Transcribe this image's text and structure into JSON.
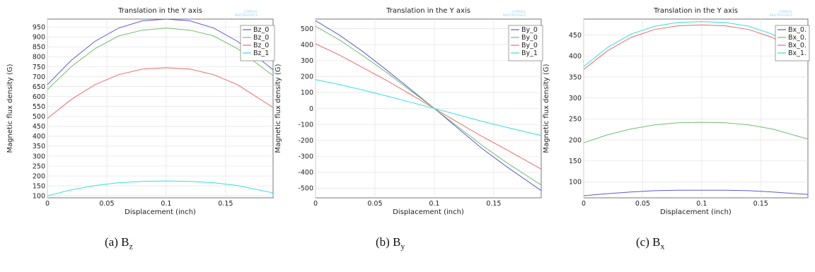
{
  "chart_data": [
    {
      "type": "line",
      "title": "Translation in the Y axis",
      "xlabel": "Displacement (inch)",
      "ylabel": "Magnetic flux density (G)",
      "xlim": [
        0,
        0.19
      ],
      "ylim": [
        90,
        990
      ],
      "xticks": [
        0,
        0.05,
        0.1,
        0.15
      ],
      "xtick_labels": [
        "0",
        "0.05",
        "0.1",
        "0.15"
      ],
      "yticks": [
        100,
        150,
        200,
        250,
        300,
        350,
        400,
        450,
        500,
        550,
        600,
        650,
        700,
        750,
        800,
        850,
        900,
        950
      ],
      "ytick_labels": [
        "100",
        "150",
        "200",
        "250",
        "300",
        "350",
        "400",
        "450",
        "500",
        "550",
        "600",
        "650",
        "700",
        "750",
        "800",
        "850",
        "900",
        "950"
      ],
      "grid": true,
      "legend_placement": "top-right",
      "caption": {
        "label": "(a) B",
        "sub": "z"
      },
      "series": [
        {
          "name": "Bz_0",
          "color": "#5b5bd6",
          "x": [
            0,
            0.02,
            0.04,
            0.06,
            0.08,
            0.1,
            0.12,
            0.14,
            0.16,
            0.19
          ],
          "y": [
            660,
            782,
            878,
            945,
            981,
            990,
            981,
            945,
            878,
            735
          ]
        },
        {
          "name": "Bz_0",
          "color": "#6fbf6f",
          "x": [
            0,
            0.02,
            0.04,
            0.06,
            0.08,
            0.1,
            0.12,
            0.14,
            0.16,
            0.19
          ],
          "y": [
            635,
            750,
            841,
            905,
            934,
            945,
            934,
            905,
            841,
            705
          ]
        },
        {
          "name": "Bz_0",
          "color": "#ee6a6a",
          "x": [
            0,
            0.02,
            0.04,
            0.06,
            0.08,
            0.1,
            0.12,
            0.14,
            0.16,
            0.19
          ],
          "y": [
            490,
            585,
            660,
            710,
            738,
            745,
            738,
            710,
            660,
            545
          ]
        },
        {
          "name": "Bz_1",
          "color": "#33e0e0",
          "x": [
            0,
            0.02,
            0.04,
            0.06,
            0.08,
            0.1,
            0.12,
            0.14,
            0.16,
            0.19
          ],
          "y": [
            100,
            130,
            152,
            166,
            173,
            175,
            173,
            166,
            152,
            115
          ]
        }
      ]
    },
    {
      "type": "line",
      "title": "Translation in the Y axis",
      "xlabel": "Displacement (inch)",
      "ylabel": "Magnetic flux density (G)",
      "xlim": [
        0,
        0.19
      ],
      "ylim": [
        -560,
        560
      ],
      "xticks": [
        0,
        0.05,
        0.1,
        0.15
      ],
      "xtick_labels": [
        "0",
        "0.05",
        "0.1",
        "0.15"
      ],
      "yticks": [
        -500,
        -400,
        -300,
        -200,
        -100,
        0,
        100,
        200,
        300,
        400,
        500
      ],
      "ytick_labels": [
        "-500",
        "-400",
        "-300",
        "-200",
        "-100",
        "0",
        "100",
        "200",
        "300",
        "400",
        "500"
      ],
      "grid": true,
      "legend_placement": "top-right",
      "caption": {
        "label": "(b) B",
        "sub": "y"
      },
      "series": [
        {
          "name": "By_0",
          "color": "#5b5bd6",
          "x": [
            0,
            0.02,
            0.04,
            0.06,
            0.08,
            0.1,
            0.12,
            0.14,
            0.16,
            0.19
          ],
          "y": [
            550,
            460,
            355,
            240,
            120,
            0,
            -125,
            -250,
            -360,
            -515
          ]
        },
        {
          "name": "By_0",
          "color": "#6fbf6f",
          "x": [
            0,
            0.02,
            0.04,
            0.06,
            0.08,
            0.1,
            0.12,
            0.14,
            0.16,
            0.19
          ],
          "y": [
            515,
            430,
            330,
            225,
            112,
            0,
            -115,
            -230,
            -335,
            -480
          ]
        },
        {
          "name": "By_0",
          "color": "#ee6a6a",
          "x": [
            0,
            0.02,
            0.04,
            0.06,
            0.08,
            0.1,
            0.12,
            0.14,
            0.16,
            0.19
          ],
          "y": [
            405,
            335,
            255,
            175,
            88,
            0,
            -88,
            -175,
            -255,
            -380
          ]
        },
        {
          "name": "By_1",
          "color": "#33e0e0",
          "x": [
            0,
            0.02,
            0.04,
            0.06,
            0.08,
            0.1,
            0.12,
            0.14,
            0.16,
            0.19
          ],
          "y": [
            180,
            150,
            115,
            78,
            39,
            0,
            -40,
            -80,
            -117,
            -170
          ]
        }
      ]
    },
    {
      "type": "line",
      "title": "Translation in the Y axis",
      "xlabel": "Displacement (inch)",
      "ylabel": "Magnetic flux density (G)",
      "xlim": [
        0,
        0.19
      ],
      "ylim": [
        62,
        488
      ],
      "xticks": [
        0,
        0.05,
        0.1,
        0.15
      ],
      "xtick_labels": [
        "0",
        "0.05",
        "0.1",
        "0.15"
      ],
      "yticks": [
        100,
        150,
        200,
        250,
        300,
        350,
        400,
        450
      ],
      "ytick_labels": [
        "100",
        "150",
        "200",
        "250",
        "300",
        "350",
        "400",
        "450"
      ],
      "grid": true,
      "legend_placement": "top-right",
      "caption": {
        "label": "(c) B",
        "sub": "x"
      },
      "series": [
        {
          "name": "Bx_0.",
          "color": "#5b5bd6",
          "x": [
            0,
            0.02,
            0.04,
            0.06,
            0.08,
            0.1,
            0.12,
            0.14,
            0.16,
            0.19
          ],
          "y": [
            67,
            72,
            76,
            79,
            80,
            80,
            80,
            79,
            76,
            70
          ]
        },
        {
          "name": "Bx_0.",
          "color": "#6fbf6f",
          "x": [
            0,
            0.02,
            0.04,
            0.06,
            0.08,
            0.1,
            0.12,
            0.14,
            0.16,
            0.19
          ],
          "y": [
            193,
            212,
            226,
            236,
            241,
            242,
            241,
            236,
            226,
            202
          ]
        },
        {
          "name": "Bx_0.",
          "color": "#ee6a6a",
          "x": [
            0,
            0.02,
            0.04,
            0.06,
            0.08,
            0.1,
            0.12,
            0.14,
            0.16,
            0.19
          ],
          "y": [
            368,
            412,
            444,
            463,
            472,
            474,
            472,
            463,
            444,
            392
          ]
        },
        {
          "name": "Bx_1.",
          "color": "#33e0e0",
          "x": [
            0,
            0.02,
            0.04,
            0.06,
            0.08,
            0.1,
            0.12,
            0.14,
            0.16,
            0.19
          ],
          "y": [
            375,
            420,
            452,
            471,
            480,
            482,
            480,
            471,
            452,
            400
          ]
        }
      ]
    }
  ]
}
